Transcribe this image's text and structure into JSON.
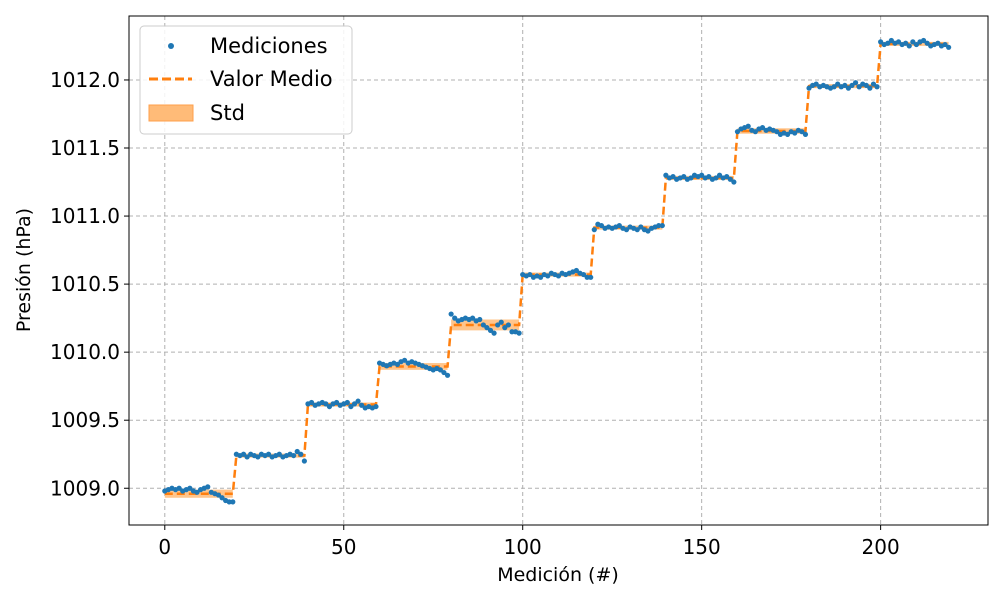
{
  "chart_data": {
    "type": "line",
    "title": "",
    "xlabel": "Medición (#)",
    "ylabel": "Presión (hPa)",
    "xlim": [
      -10,
      230
    ],
    "ylim": [
      1008.73,
      1012.47
    ],
    "x_ticks": [
      0,
      50,
      100,
      150,
      200
    ],
    "y_ticks": [
      1009.0,
      1009.5,
      1010.0,
      1010.5,
      1011.0,
      1011.5,
      1012.0
    ],
    "x_tick_labels": [
      "0",
      "50",
      "100",
      "150",
      "200"
    ],
    "y_tick_labels": [
      "1009.0",
      "1009.5",
      "1010.0",
      "1010.5",
      "1011.0",
      "1011.5",
      "1012.0"
    ],
    "grid": true,
    "legend_position": "top-left",
    "legend": [
      {
        "label": "Mediciones",
        "kind": "marker",
        "color": "#1f77b4"
      },
      {
        "label": "Valor Medio",
        "kind": "dashed-line",
        "color": "#ff7f0e"
      },
      {
        "label": "Std",
        "kind": "band",
        "color": "#ffbb78"
      }
    ],
    "series": [
      {
        "name": "Mediciones",
        "kind": "scatter",
        "color": "#1f77b4",
        "points": [
          [
            0,
            1008.98
          ],
          [
            1,
            1008.99
          ],
          [
            2,
            1009.0
          ],
          [
            3,
            1008.99
          ],
          [
            4,
            1009.0
          ],
          [
            5,
            1008.98
          ],
          [
            6,
            1008.99
          ],
          [
            7,
            1009.0
          ],
          [
            8,
            1008.98
          ],
          [
            9,
            1008.97
          ],
          [
            10,
            1008.99
          ],
          [
            11,
            1009.0
          ],
          [
            12,
            1009.01
          ],
          [
            13,
            1008.97
          ],
          [
            14,
            1008.96
          ],
          [
            15,
            1008.95
          ],
          [
            16,
            1008.93
          ],
          [
            17,
            1008.91
          ],
          [
            18,
            1008.9
          ],
          [
            19,
            1008.9
          ],
          [
            20,
            1009.25
          ],
          [
            21,
            1009.24
          ],
          [
            22,
            1009.25
          ],
          [
            23,
            1009.23
          ],
          [
            24,
            1009.25
          ],
          [
            25,
            1009.24
          ],
          [
            26,
            1009.23
          ],
          [
            27,
            1009.25
          ],
          [
            28,
            1009.24
          ],
          [
            29,
            1009.25
          ],
          [
            30,
            1009.23
          ],
          [
            31,
            1009.24
          ],
          [
            32,
            1009.25
          ],
          [
            33,
            1009.23
          ],
          [
            34,
            1009.24
          ],
          [
            35,
            1009.25
          ],
          [
            36,
            1009.24
          ],
          [
            37,
            1009.27
          ],
          [
            38,
            1009.25
          ],
          [
            39,
            1009.2
          ],
          [
            40,
            1009.62
          ],
          [
            41,
            1009.63
          ],
          [
            42,
            1009.61
          ],
          [
            43,
            1009.62
          ],
          [
            44,
            1009.63
          ],
          [
            45,
            1009.62
          ],
          [
            46,
            1009.6
          ],
          [
            47,
            1009.62
          ],
          [
            48,
            1009.63
          ],
          [
            49,
            1009.61
          ],
          [
            50,
            1009.62
          ],
          [
            51,
            1009.63
          ],
          [
            52,
            1009.6
          ],
          [
            53,
            1009.62
          ],
          [
            54,
            1009.64
          ],
          [
            55,
            1009.61
          ],
          [
            56,
            1009.59
          ],
          [
            57,
            1009.6
          ],
          [
            58,
            1009.59
          ],
          [
            59,
            1009.6
          ],
          [
            60,
            1009.92
          ],
          [
            61,
            1009.91
          ],
          [
            62,
            1009.9
          ],
          [
            63,
            1009.91
          ],
          [
            64,
            1009.92
          ],
          [
            65,
            1009.91
          ],
          [
            66,
            1009.93
          ],
          [
            67,
            1009.94
          ],
          [
            68,
            1009.92
          ],
          [
            69,
            1009.93
          ],
          [
            70,
            1009.92
          ],
          [
            71,
            1009.91
          ],
          [
            72,
            1009.9
          ],
          [
            73,
            1009.89
          ],
          [
            74,
            1009.88
          ],
          [
            75,
            1009.87
          ],
          [
            76,
            1009.88
          ],
          [
            77,
            1009.87
          ],
          [
            78,
            1009.85
          ],
          [
            79,
            1009.83
          ],
          [
            80,
            1010.28
          ],
          [
            81,
            1010.25
          ],
          [
            82,
            1010.23
          ],
          [
            83,
            1010.24
          ],
          [
            84,
            1010.25
          ],
          [
            85,
            1010.24
          ],
          [
            86,
            1010.25
          ],
          [
            87,
            1010.23
          ],
          [
            88,
            1010.24
          ],
          [
            89,
            1010.2
          ],
          [
            90,
            1010.18
          ],
          [
            91,
            1010.16
          ],
          [
            92,
            1010.14
          ],
          [
            93,
            1010.2
          ],
          [
            94,
            1010.22
          ],
          [
            95,
            1010.18
          ],
          [
            96,
            1010.2
          ],
          [
            97,
            1010.15
          ],
          [
            98,
            1010.15
          ],
          [
            99,
            1010.14
          ],
          [
            100,
            1010.57
          ],
          [
            101,
            1010.56
          ],
          [
            102,
            1010.57
          ],
          [
            103,
            1010.55
          ],
          [
            104,
            1010.56
          ],
          [
            105,
            1010.55
          ],
          [
            106,
            1010.57
          ],
          [
            107,
            1010.56
          ],
          [
            108,
            1010.58
          ],
          [
            109,
            1010.57
          ],
          [
            110,
            1010.56
          ],
          [
            111,
            1010.58
          ],
          [
            112,
            1010.57
          ],
          [
            113,
            1010.58
          ],
          [
            114,
            1010.59
          ],
          [
            115,
            1010.6
          ],
          [
            116,
            1010.58
          ],
          [
            117,
            1010.57
          ],
          [
            118,
            1010.55
          ],
          [
            119,
            1010.55
          ],
          [
            120,
            1010.9
          ],
          [
            121,
            1010.94
          ],
          [
            122,
            1010.93
          ],
          [
            123,
            1010.91
          ],
          [
            124,
            1010.92
          ],
          [
            125,
            1010.91
          ],
          [
            126,
            1010.92
          ],
          [
            127,
            1010.93
          ],
          [
            128,
            1010.91
          ],
          [
            129,
            1010.9
          ],
          [
            130,
            1010.92
          ],
          [
            131,
            1010.91
          ],
          [
            132,
            1010.9
          ],
          [
            133,
            1010.92
          ],
          [
            134,
            1010.9
          ],
          [
            135,
            1010.89
          ],
          [
            136,
            1010.91
          ],
          [
            137,
            1010.92
          ],
          [
            138,
            1010.93
          ],
          [
            139,
            1010.93
          ],
          [
            140,
            1011.3
          ],
          [
            141,
            1011.28
          ],
          [
            142,
            1011.29
          ],
          [
            143,
            1011.27
          ],
          [
            144,
            1011.28
          ],
          [
            145,
            1011.29
          ],
          [
            146,
            1011.27
          ],
          [
            147,
            1011.28
          ],
          [
            148,
            1011.3
          ],
          [
            149,
            1011.29
          ],
          [
            150,
            1011.3
          ],
          [
            151,
            1011.28
          ],
          [
            152,
            1011.29
          ],
          [
            153,
            1011.27
          ],
          [
            154,
            1011.28
          ],
          [
            155,
            1011.3
          ],
          [
            156,
            1011.28
          ],
          [
            157,
            1011.29
          ],
          [
            158,
            1011.27
          ],
          [
            159,
            1011.25
          ],
          [
            160,
            1011.62
          ],
          [
            161,
            1011.64
          ],
          [
            162,
            1011.65
          ],
          [
            163,
            1011.66
          ],
          [
            164,
            1011.63
          ],
          [
            165,
            1011.62
          ],
          [
            166,
            1011.64
          ],
          [
            167,
            1011.65
          ],
          [
            168,
            1011.63
          ],
          [
            169,
            1011.64
          ],
          [
            170,
            1011.63
          ],
          [
            171,
            1011.62
          ],
          [
            172,
            1011.6
          ],
          [
            173,
            1011.61
          ],
          [
            174,
            1011.6
          ],
          [
            175,
            1011.62
          ],
          [
            176,
            1011.61
          ],
          [
            177,
            1011.63
          ],
          [
            178,
            1011.62
          ],
          [
            179,
            1011.6
          ],
          [
            180,
            1011.94
          ],
          [
            181,
            1011.96
          ],
          [
            182,
            1011.97
          ],
          [
            183,
            1011.95
          ],
          [
            184,
            1011.96
          ],
          [
            185,
            1011.95
          ],
          [
            186,
            1011.94
          ],
          [
            187,
            1011.95
          ],
          [
            188,
            1011.97
          ],
          [
            189,
            1011.95
          ],
          [
            190,
            1011.96
          ],
          [
            191,
            1011.94
          ],
          [
            192,
            1011.96
          ],
          [
            193,
            1011.98
          ],
          [
            194,
            1011.95
          ],
          [
            195,
            1011.97
          ],
          [
            196,
            1011.96
          ],
          [
            197,
            1011.94
          ],
          [
            198,
            1011.97
          ],
          [
            199,
            1011.95
          ],
          [
            200,
            1012.28
          ],
          [
            201,
            1012.26
          ],
          [
            202,
            1012.27
          ],
          [
            203,
            1012.29
          ],
          [
            204,
            1012.27
          ],
          [
            205,
            1012.28
          ],
          [
            206,
            1012.26
          ],
          [
            207,
            1012.27
          ],
          [
            208,
            1012.25
          ],
          [
            209,
            1012.28
          ],
          [
            210,
            1012.26
          ],
          [
            211,
            1012.28
          ],
          [
            212,
            1012.29
          ],
          [
            213,
            1012.27
          ],
          [
            214,
            1012.25
          ],
          [
            215,
            1012.26
          ],
          [
            216,
            1012.27
          ],
          [
            217,
            1012.25
          ],
          [
            218,
            1012.26
          ],
          [
            219,
            1012.24
          ]
        ]
      },
      {
        "name": "Valor Medio",
        "kind": "step-line",
        "color": "#ff7f0e",
        "segments": [
          {
            "x0": 0,
            "x1": 19,
            "mean": 1008.96,
            "std": 0.03
          },
          {
            "x0": 20,
            "x1": 39,
            "mean": 1009.24,
            "std": 0.015
          },
          {
            "x0": 40,
            "x1": 59,
            "mean": 1009.615,
            "std": 0.015
          },
          {
            "x0": 60,
            "x1": 79,
            "mean": 1009.895,
            "std": 0.025
          },
          {
            "x0": 80,
            "x1": 99,
            "mean": 1010.2,
            "std": 0.04
          },
          {
            "x0": 100,
            "x1": 119,
            "mean": 1010.57,
            "std": 0.015
          },
          {
            "x0": 120,
            "x1": 139,
            "mean": 1010.915,
            "std": 0.015
          },
          {
            "x0": 140,
            "x1": 159,
            "mean": 1011.28,
            "std": 0.015
          },
          {
            "x0": 160,
            "x1": 179,
            "mean": 1011.625,
            "std": 0.02
          },
          {
            "x0": 180,
            "x1": 199,
            "mean": 1011.955,
            "std": 0.015
          },
          {
            "x0": 200,
            "x1": 219,
            "mean": 1012.265,
            "std": 0.015
          }
        ]
      }
    ]
  }
}
